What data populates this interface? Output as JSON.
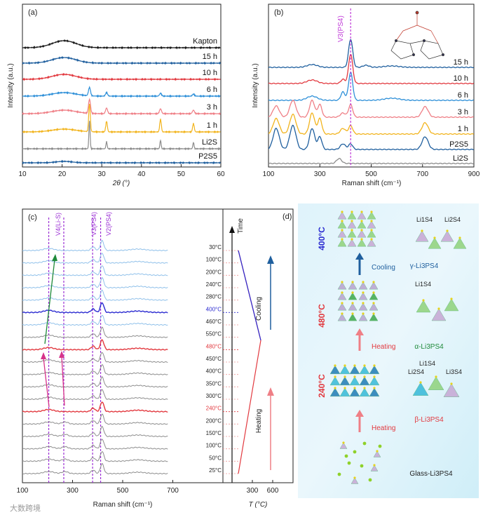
{
  "colors": {
    "black": "#1a1a1a",
    "dark_blue": "#1f5f9e",
    "red": "#e2393f",
    "blue": "#2d8fd8",
    "pink": "#ef7f86",
    "gold": "#f2b41d",
    "gray": "#8c8c8c",
    "light_blue": "#8fc0ea",
    "royal_blue": "#2a2ad0",
    "purple": "#9b2fd4",
    "magenta": "#d6338a",
    "green": "#1f8a3a"
  },
  "chart_data": [
    {
      "panel": "(a)",
      "type": "line",
      "xlabel": "2θ (°)",
      "ylabel": "Intensity (a.u.)",
      "xlim": [
        10,
        60
      ],
      "xticks": [
        "10",
        "20",
        "30",
        "40",
        "50",
        "60"
      ],
      "series": [
        {
          "name": "Kapton",
          "peaks": [
            [
              20.5,
              3.0,
              10
            ]
          ]
        },
        {
          "name": "15 h",
          "peaks": [
            [
              20.5,
              3.0,
              8
            ]
          ]
        },
        {
          "name": "10 h",
          "peaks": [
            [
              20.5,
              3.0,
              7
            ]
          ]
        },
        {
          "name": "6 h",
          "peaks": [
            [
              20.5,
              3.0,
              5
            ],
            [
              26.9,
              0.25,
              12
            ],
            [
              31.2,
              0.25,
              5
            ],
            [
              44.8,
              0.25,
              4
            ],
            [
              53.1,
              0.25,
              3
            ]
          ]
        },
        {
          "name": "3 h",
          "peaks": [
            [
              20.5,
              3.0,
              5
            ],
            [
              26.9,
              0.25,
              20
            ],
            [
              31.2,
              0.25,
              8
            ],
            [
              44.8,
              0.25,
              7
            ],
            [
              53.1,
              0.25,
              5
            ]
          ]
        },
        {
          "name": "1 h",
          "peaks": [
            [
              20.5,
              3.0,
              4
            ],
            [
              26.9,
              0.2,
              40
            ],
            [
              31.2,
              0.2,
              15
            ],
            [
              44.8,
              0.2,
              18
            ],
            [
              53.1,
              0.2,
              12
            ]
          ]
        },
        {
          "name": "Li2S",
          "peaks": [
            [
              26.9,
              0.15,
              40
            ],
            [
              31.2,
              0.15,
              10
            ],
            [
              44.8,
              0.15,
              12
            ],
            [
              53.1,
              0.15,
              9
            ]
          ]
        },
        {
          "name": "P2S5",
          "peaks": [
            [
              20.5,
              2.0,
              2
            ]
          ]
        }
      ]
    },
    {
      "panel": "(b)",
      "type": "line",
      "xlabel": "Raman shift (cm⁻¹)",
      "ylabel": "Intensity (a.u.)",
      "xlim": [
        100,
        900
      ],
      "xticks": [
        "100",
        "300",
        "500",
        "700",
        "900"
      ],
      "annotation": "V3(PS4)",
      "annotation_x": 420,
      "series": [
        {
          "name": "15 h",
          "peaks": [
            [
              420,
              8,
              40
            ],
            [
              270,
              20,
              4
            ],
            [
              480,
              12,
              3
            ],
            [
              580,
              30,
              2
            ]
          ]
        },
        {
          "name": "10 h",
          "peaks": [
            [
              420,
              8,
              42
            ],
            [
              270,
              20,
              5
            ],
            [
              390,
              8,
              6
            ]
          ]
        },
        {
          "name": "6 h",
          "peaks": [
            [
              420,
              8,
              40
            ],
            [
              390,
              8,
              12
            ],
            [
              270,
              20,
              6
            ],
            [
              580,
              30,
              3
            ]
          ]
        },
        {
          "name": "3 h",
          "peaks": [
            [
              420,
              8,
              18
            ],
            [
              390,
              10,
              6
            ],
            [
              300,
              8,
              18
            ],
            [
              270,
              10,
              24
            ],
            [
              195,
              12,
              24
            ],
            [
              130,
              12,
              16
            ],
            [
              710,
              12,
              15
            ]
          ]
        },
        {
          "name": "1 h",
          "peaks": [
            [
              420,
              8,
              12
            ],
            [
              390,
              10,
              8
            ],
            [
              300,
              8,
              22
            ],
            [
              270,
              10,
              30
            ],
            [
              195,
              12,
              28
            ],
            [
              130,
              12,
              22
            ],
            [
              710,
              12,
              16
            ]
          ]
        },
        {
          "name": "P2S5",
          "peaks": [
            [
              420,
              8,
              8
            ],
            [
              390,
              10,
              8
            ],
            [
              300,
              8,
              18
            ],
            [
              270,
              10,
              30
            ],
            [
              195,
              12,
              34
            ],
            [
              130,
              12,
              30
            ],
            [
              710,
              12,
              18
            ]
          ]
        },
        {
          "name": "Li2S",
          "peaks": [
            [
              375,
              10,
              7
            ]
          ]
        }
      ]
    },
    {
      "panel": "(c)",
      "type": "line",
      "xlabel": "Raman shift (cm⁻¹)",
      "x2label": "T (°C)",
      "xlim": [
        100,
        900
      ],
      "xticks": [
        "100",
        "300",
        "500",
        "700"
      ],
      "x2ticks": [
        "300",
        "600"
      ],
      "annotations": [
        "V4(Li-S)",
        "V3(PS4)",
        "V2(PS4)"
      ],
      "arrow_labels": [
        "Time",
        "Cooling",
        "Heating"
      ],
      "series": [
        {
          "name": "30°C",
          "phase": "cooling"
        },
        {
          "name": "100°C",
          "phase": "cooling"
        },
        {
          "name": "200°C",
          "phase": "cooling"
        },
        {
          "name": "240°C",
          "phase": "cooling"
        },
        {
          "name": "280°C",
          "phase": "cooling"
        },
        {
          "name": "400°C",
          "phase": "cooling"
        },
        {
          "name": "460°C",
          "phase": "cooling"
        },
        {
          "name": "550°C",
          "phase": "peak"
        },
        {
          "name": "480°C",
          "phase": "heating"
        },
        {
          "name": "450°C",
          "phase": "heating"
        },
        {
          "name": "400°C",
          "phase": "heating"
        },
        {
          "name": "350°C",
          "phase": "heating"
        },
        {
          "name": "300°C",
          "phase": "heating"
        },
        {
          "name": "240°C",
          "phase": "heating"
        },
        {
          "name": "200°C",
          "phase": "heating"
        },
        {
          "name": "150°C",
          "phase": "heating"
        },
        {
          "name": "100°C",
          "phase": "heating"
        },
        {
          "name": "50°C",
          "phase": "heating"
        },
        {
          "name": "25°C",
          "phase": "heating"
        }
      ]
    }
  ],
  "panel_d": {
    "label": "(d)",
    "temps": [
      "400°C",
      "480°C",
      "240°C"
    ],
    "steps": [
      "Cooling",
      "Heating",
      "Heating"
    ],
    "phases": [
      "γ-Li3PS4",
      "α-Li3PS4",
      "β-Li3PS4",
      "Glass-Li3PS4"
    ],
    "site_labels": [
      "Li1S4",
      "Li2S4",
      "Li1S4",
      "Li2S4",
      "Li1S4",
      "Li3S4"
    ]
  },
  "watermark": "大数跨境"
}
